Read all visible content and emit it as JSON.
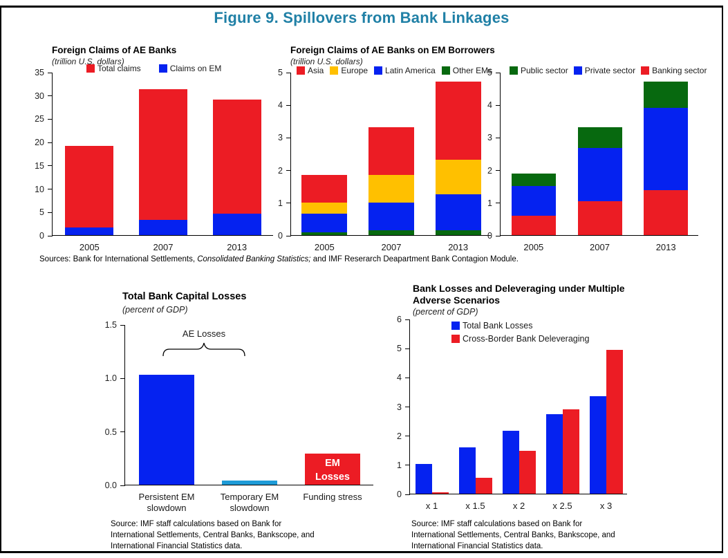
{
  "figure_title": "Figure 9. Spillovers from Bank Linkages",
  "colors": {
    "figure_title_accent": "#2080A6",
    "red": "#EC1C24",
    "blue": "#0522F0",
    "light_blue": "#1E9BD7",
    "yellow": "#FFC000",
    "green": "#07690F",
    "border": "#000000"
  },
  "sources_top": {
    "prefix": "Sources: Bank for International Settlements,  ",
    "italic": "Consolidated Banking Statistics;",
    "suffix": " and IMF Reserarch Deapartment Bank Contagion Module."
  },
  "source_bottom_left": {
    "lines": [
      "Source: IMF staff calculations based on Bank for",
      "International Settlements,  Central Banks, Bankscope, and",
      "International Financial Statistics  data."
    ]
  },
  "source_bottom_right": {
    "lines": [
      "Source: IMF staff calculations based on Bank for",
      "International Settlements,  Central Banks, Bankscope, and",
      "International Financial Statistics  data."
    ]
  },
  "chart_data": [
    {
      "id": "foreign-claims-of-ae-banks",
      "type": "bar",
      "variant": "overlay",
      "title": "Foreign Claims of AE Banks",
      "subtitle": "(trillion U.S. dollars)",
      "categories": [
        "2005",
        "2007",
        "2013"
      ],
      "series": [
        {
          "name": "Total claims",
          "color": "#EC1C24",
          "values": [
            19.1,
            31.3,
            29.1
          ]
        },
        {
          "name": "Claims on EM",
          "color": "#0522F0",
          "values": [
            1.7,
            3.2,
            4.6
          ]
        }
      ],
      "legend": [
        {
          "label": "Total claims",
          "color": "#EC1C24"
        },
        {
          "label": "Claims on EM",
          "color": "#0522F0"
        }
      ],
      "ylim": [
        0,
        35
      ],
      "yticks": [
        "35",
        "30",
        "25",
        "20",
        "15",
        "10",
        "5",
        "0"
      ],
      "grid": false
    },
    {
      "id": "foreign-claims-of-ae-banks-on-em-borrowers",
      "type": "bar",
      "variant": "stacked",
      "title": "Foreign Claims of AE Banks on EM Borrowers",
      "subtitle": "(trillion U.S. dollars)",
      "categories": [
        "2005",
        "2007",
        "2013"
      ],
      "series": [
        {
          "name": "Other EMs",
          "color": "#07690F",
          "values": [
            0.08,
            0.15,
            0.15
          ]
        },
        {
          "name": "Latin America",
          "color": "#0522F0",
          "values": [
            0.57,
            0.85,
            1.1
          ]
        },
        {
          "name": "Europe",
          "color": "#FFC000",
          "values": [
            0.35,
            0.85,
            1.05
          ]
        },
        {
          "name": "Asia",
          "color": "#EC1C24",
          "values": [
            0.85,
            1.45,
            2.4
          ]
        }
      ],
      "totals": [
        1.85,
        3.3,
        4.7
      ],
      "legend": [
        {
          "label": "Asia",
          "color": "#EC1C24"
        },
        {
          "label": "Europe",
          "color": "#FFC000"
        },
        {
          "label": "Latin America",
          "color": "#0522F0"
        },
        {
          "label": "Other EMs",
          "color": "#07690F"
        }
      ],
      "ylim": [
        0,
        5
      ],
      "yticks": [
        "5",
        "4",
        "3",
        "2",
        "1",
        "0"
      ],
      "grid": false
    },
    {
      "id": "foreign-claims-on-em-by-sector",
      "type": "bar",
      "variant": "stacked",
      "title": "",
      "subtitle": "",
      "categories": [
        "2005",
        "2007",
        "2013"
      ],
      "series": [
        {
          "name": "Banking sector",
          "color": "#EC1C24",
          "values": [
            0.6,
            1.03,
            1.38
          ]
        },
        {
          "name": "Private sector",
          "color": "#0522F0",
          "values": [
            0.9,
            1.63,
            2.52
          ]
        },
        {
          "name": "Public sector",
          "color": "#07690F",
          "values": [
            0.38,
            0.64,
            0.8
          ]
        }
      ],
      "totals": [
        1.88,
        3.3,
        4.7
      ],
      "legend": [
        {
          "label": "Public sector",
          "color": "#07690F"
        },
        {
          "label": "Private sector",
          "color": "#0522F0"
        },
        {
          "label": "Banking sector",
          "color": "#EC1C24"
        }
      ],
      "ylim": [
        0,
        5
      ],
      "yticks": [
        "5",
        "4",
        "3",
        "2",
        "1",
        "0"
      ],
      "grid": false
    },
    {
      "id": "total-bank-capital-losses",
      "type": "bar",
      "variant": "single",
      "title": "Total Bank Capital Losses",
      "subtitle": "(percent of GDP)",
      "categories": [
        "Persistent EM slowdown",
        "Temporary EM slowdown",
        "Funding stress"
      ],
      "bars": [
        {
          "value": 1.03,
          "color": "#0522F0"
        },
        {
          "value": 0.04,
          "color": "#1E9BD7"
        },
        {
          "value": 0.29,
          "color": "#EC1C24",
          "bar_label": "EM Losses"
        }
      ],
      "annotation": {
        "text": "AE Losses",
        "spans": [
          "Persistent EM slowdown",
          "Temporary EM slowdown"
        ]
      },
      "ylim": [
        0,
        1.5
      ],
      "yticks": [
        "1.5",
        "1.0",
        "0.5",
        "0.0"
      ],
      "grid": false
    },
    {
      "id": "bank-losses-and-deleveraging",
      "type": "bar",
      "variant": "grouped",
      "title": "Bank Losses and Deleveraging under Multiple Adverse Scenarios",
      "title_lines": [
        "Bank Losses and Deleveraging under Multiple",
        "Adverse Scenarios"
      ],
      "subtitle": "(percent of GDP)",
      "categories": [
        "x 1",
        "x 1.5",
        "x 2",
        "x 2.5",
        "x 3"
      ],
      "series": [
        {
          "name": "Total Bank Losses",
          "color": "#0522F0",
          "values": [
            1.03,
            1.58,
            2.15,
            2.73,
            3.35
          ]
        },
        {
          "name": "Cross-Border Bank Deleveraging",
          "color": "#EC1C24",
          "values": [
            0.05,
            0.54,
            1.48,
            2.89,
            4.93
          ]
        }
      ],
      "legend": [
        {
          "label": "Total Bank Losses",
          "color": "#0522F0"
        },
        {
          "label": "Cross-Border Bank Deleveraging",
          "color": "#EC1C24"
        }
      ],
      "ylim": [
        0,
        6
      ],
      "yticks": [
        "6",
        "5",
        "4",
        "3",
        "2",
        "1",
        "0"
      ],
      "grid": false
    }
  ]
}
